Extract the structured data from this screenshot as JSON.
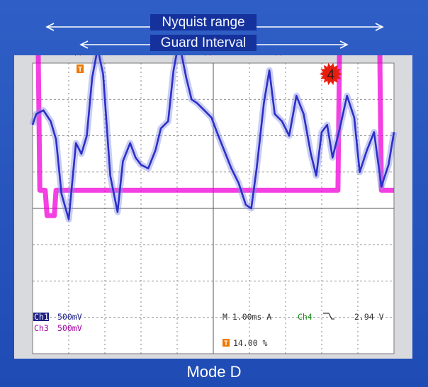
{
  "slide": {
    "nyquist_label": "Nyquist range",
    "guard_label": "Guard Interval",
    "caption": "Mode D"
  },
  "scope": {
    "ch1_label": "Ch1",
    "ch1_scale": "500mV",
    "ch3_label": "Ch3",
    "ch3_scale": "500mV",
    "timebase": "M 1.00ms A",
    "trigger_channel": "Ch4",
    "trigger_slope_icon": "falling-edge-icon",
    "trigger_level": "2.94 V",
    "trigger_position": "14.00 %",
    "trigger_marker": "T",
    "colors": {
      "ch1": "#2b2fc8",
      "ch3": "#f000d8",
      "ch4": "#1a8c1a",
      "trigger": "#f07800",
      "marker": "#e81e0c"
    }
  },
  "chart_data": {
    "type": "line",
    "title": "",
    "xlabel": "",
    "ylabel": "",
    "grid": true,
    "divisions": {
      "x": 10,
      "y": 8
    },
    "markers": [
      "1",
      "2",
      "3",
      "4"
    ],
    "series": [
      {
        "name": "Ch1",
        "x": [
          0,
          0.1,
          0.3,
          0.5,
          0.65,
          0.8,
          1.0,
          1.2,
          1.35,
          1.5,
          1.65,
          1.8,
          1.95,
          2.15,
          2.35,
          2.5,
          2.7,
          2.85,
          3.0,
          3.2,
          3.4,
          3.55,
          3.75,
          3.9,
          4.05,
          4.25,
          4.4,
          4.55,
          4.75,
          4.95,
          5.1,
          5.3,
          5.5,
          5.7,
          5.9,
          6.05,
          6.2,
          6.4,
          6.55,
          6.7,
          6.9,
          7.1,
          7.3,
          7.5,
          7.7,
          7.85,
          8.0,
          8.15,
          8.3,
          8.5,
          8.7,
          8.9,
          9.05,
          9.25,
          9.45,
          9.65,
          9.85,
          10.0
        ],
        "values": [
          2.3,
          2.6,
          2.7,
          2.4,
          1.9,
          0.4,
          -0.3,
          1.8,
          1.5,
          2.0,
          3.6,
          4.4,
          3.7,
          0.9,
          -0.1,
          1.3,
          1.8,
          1.4,
          1.2,
          1.1,
          1.6,
          2.2,
          2.4,
          3.8,
          4.6,
          3.6,
          3.0,
          2.9,
          2.7,
          2.5,
          2.1,
          1.6,
          1.1,
          0.7,
          0.1,
          0.0,
          1.1,
          2.9,
          3.8,
          2.6,
          2.4,
          2.0,
          3.1,
          2.6,
          1.5,
          0.9,
          2.1,
          2.3,
          1.4,
          2.2,
          3.1,
          2.5,
          1.0,
          1.6,
          2.1,
          0.6,
          1.2,
          2.1
        ]
      },
      {
        "name": "Ch3",
        "x": [
          0.0,
          0.15,
          0.2,
          0.35,
          0.4,
          0.6,
          0.65,
          8.45,
          8.5,
          9.6,
          9.65,
          10.0
        ],
        "values": [
          4.9,
          4.9,
          0.5,
          0.5,
          -0.2,
          -0.2,
          0.5,
          0.5,
          4.9,
          4.9,
          0.5,
          0.5
        ]
      }
    ]
  }
}
